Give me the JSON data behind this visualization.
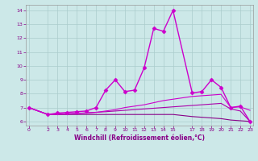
{
  "xlabel": "Windchill (Refroidissement éolien,°C)",
  "background_color": "#cce8e8",
  "line_color": "#880088",
  "grid_color": "#aacccc",
  "xlim": [
    -0.3,
    23.3
  ],
  "ylim": [
    5.7,
    14.4
  ],
  "yticks": [
    6,
    7,
    8,
    9,
    10,
    11,
    12,
    13,
    14
  ],
  "xticks": [
    0,
    2,
    3,
    4,
    5,
    6,
    7,
    8,
    9,
    10,
    11,
    12,
    13,
    14,
    15,
    17,
    18,
    19,
    20,
    21,
    22,
    23
  ],
  "series": [
    {
      "x": [
        0,
        2,
        3,
        4,
        5,
        6,
        7,
        8,
        9,
        10,
        11,
        12,
        13,
        14,
        15,
        17,
        18,
        19,
        20,
        21,
        22,
        23
      ],
      "y": [
        7.0,
        6.5,
        6.6,
        6.65,
        6.7,
        6.75,
        7.0,
        8.25,
        9.0,
        8.15,
        8.25,
        9.85,
        12.7,
        12.5,
        14.0,
        8.05,
        8.15,
        9.0,
        8.45,
        7.0,
        7.1,
        6.0
      ],
      "color": "#cc00cc",
      "marker": "D",
      "markersize": 2.5,
      "linewidth": 1.0,
      "zorder": 5
    },
    {
      "x": [
        0,
        2,
        3,
        4,
        5,
        6,
        7,
        8,
        9,
        10,
        11,
        12,
        13,
        14,
        15,
        17,
        18,
        19,
        20,
        21,
        22,
        23
      ],
      "y": [
        7.0,
        6.5,
        6.52,
        6.54,
        6.57,
        6.6,
        6.65,
        6.75,
        6.85,
        7.0,
        7.1,
        7.2,
        7.35,
        7.5,
        7.6,
        7.8,
        7.85,
        7.9,
        7.95,
        7.0,
        7.05,
        6.8
      ],
      "color": "#cc00cc",
      "marker": null,
      "markersize": 0,
      "linewidth": 0.8,
      "zorder": 3
    },
    {
      "x": [
        0,
        2,
        3,
        4,
        5,
        6,
        7,
        8,
        9,
        10,
        11,
        12,
        13,
        14,
        15,
        17,
        18,
        19,
        20,
        21,
        22,
        23
      ],
      "y": [
        7.0,
        6.5,
        6.5,
        6.5,
        6.5,
        6.5,
        6.5,
        6.5,
        6.5,
        6.5,
        6.5,
        6.5,
        6.5,
        6.5,
        6.5,
        6.35,
        6.3,
        6.25,
        6.2,
        6.1,
        6.05,
        6.0
      ],
      "color": "#880088",
      "marker": null,
      "markersize": 0,
      "linewidth": 0.8,
      "zorder": 2
    },
    {
      "x": [
        0,
        2,
        3,
        4,
        5,
        6,
        7,
        8,
        9,
        10,
        11,
        12,
        13,
        14,
        15,
        17,
        18,
        19,
        20,
        21,
        22,
        23
      ],
      "y": [
        7.0,
        6.5,
        6.52,
        6.55,
        6.58,
        6.62,
        6.66,
        6.7,
        6.75,
        6.8,
        6.85,
        6.9,
        6.95,
        7.0,
        7.05,
        7.15,
        7.2,
        7.25,
        7.3,
        6.9,
        6.75,
        6.0
      ],
      "color": "#aa00aa",
      "marker": null,
      "markersize": 0,
      "linewidth": 0.8,
      "zorder": 2
    }
  ]
}
